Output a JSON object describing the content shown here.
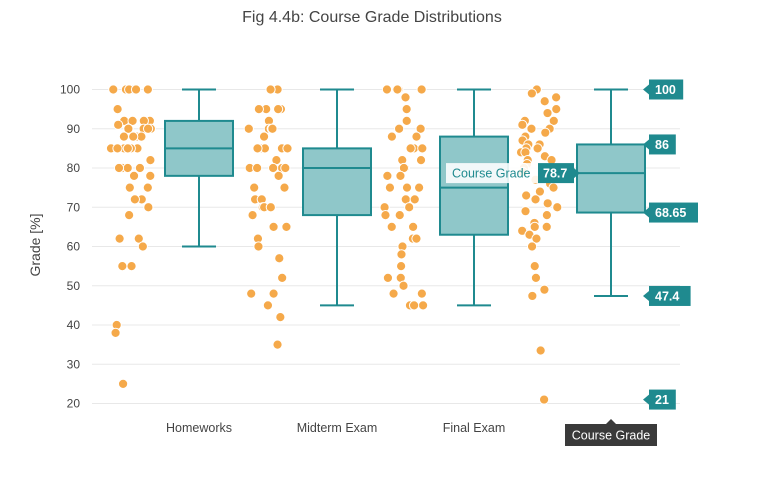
{
  "chart_data": {
    "type": "box",
    "title": "Fig 4.4b: Course Grade Distributions",
    "xlabel": "",
    "ylabel": "Grade [%]",
    "ylim": [
      15,
      105
    ],
    "yticks": [
      20,
      30,
      40,
      50,
      60,
      70,
      80,
      90,
      100
    ],
    "grid": true,
    "legend": "none",
    "colors": {
      "box_fill": "#8fc7c9",
      "box_line": "#1f8a8f",
      "points": "#f5a94a",
      "label_bg": "#1f8a8f",
      "tooltip_bg": "#3a3a3a"
    },
    "categories": [
      "Homeworks",
      "Midterm Exam",
      "Final Exam",
      "Course Grade"
    ],
    "boxes": [
      {
        "category": "Homeworks",
        "min": 60,
        "q1": 78,
        "median": 85,
        "q3": 92,
        "max": 100
      },
      {
        "category": "Midterm Exam",
        "min": 45,
        "q1": 68,
        "median": 80,
        "q3": 85,
        "max": 100
      },
      {
        "category": "Final Exam",
        "min": 45,
        "q1": 63,
        "median": 75,
        "q3": 88,
        "max": 100
      },
      {
        "category": "Course Grade",
        "min": 47.4,
        "q1": 68.65,
        "median": 78.7,
        "q3": 86,
        "max": 100
      }
    ],
    "points": [
      {
        "category": "Homeworks",
        "values": [
          100,
          100,
          100,
          100,
          100,
          100,
          95,
          92,
          92,
          92,
          92,
          91,
          90,
          90,
          90,
          90,
          90,
          88,
          88,
          88,
          88,
          85,
          85,
          85,
          85,
          85,
          85,
          85,
          85,
          82,
          80,
          80,
          80,
          80,
          78,
          78,
          75,
          75,
          72,
          72,
          70,
          68,
          62,
          62,
          60,
          55,
          55,
          40,
          38,
          25
        ]
      },
      {
        "category": "Midterm Exam",
        "values": [
          100,
          100,
          95,
          95,
          95,
          95,
          92,
          92,
          90,
          90,
          90,
          90,
          88,
          85,
          85,
          85,
          85,
          85,
          82,
          80,
          80,
          80,
          80,
          80,
          80,
          78,
          75,
          75,
          72,
          72,
          70,
          70,
          70,
          70,
          68,
          65,
          65,
          62,
          60,
          57,
          52,
          48,
          48,
          45,
          42,
          35
        ]
      },
      {
        "category": "Final Exam",
        "values": [
          100,
          100,
          100,
          100,
          98,
          95,
          95,
          92,
          92,
          90,
          90,
          88,
          88,
          85,
          85,
          85,
          82,
          82,
          80,
          80,
          80,
          78,
          78,
          78,
          75,
          75,
          75,
          72,
          72,
          70,
          70,
          68,
          68,
          65,
          65,
          62,
          62,
          60,
          58,
          55,
          52,
          52,
          50,
          50,
          48,
          48,
          45,
          45,
          45
        ]
      },
      {
        "category": "Course Grade",
        "values": [
          100,
          99,
          98,
          97,
          95,
          94,
          92,
          92,
          91,
          90,
          90,
          89,
          88,
          87,
          86,
          86,
          85,
          85,
          84,
          84,
          83,
          82,
          82,
          81,
          80,
          80,
          79,
          78,
          77,
          76,
          75,
          74,
          73,
          72,
          71,
          70,
          69,
          68,
          66,
          65,
          65,
          64,
          64,
          63,
          62,
          60,
          55,
          52,
          49,
          47.4,
          33.5,
          21
        ]
      }
    ],
    "hover": {
      "category": "Course Grade",
      "axis_label": "Course Grade",
      "label_text": "Course Grade",
      "label_value": "78.7",
      "spike_labels": [
        "100",
        "86",
        "68.65",
        "47.4",
        "21"
      ]
    }
  }
}
